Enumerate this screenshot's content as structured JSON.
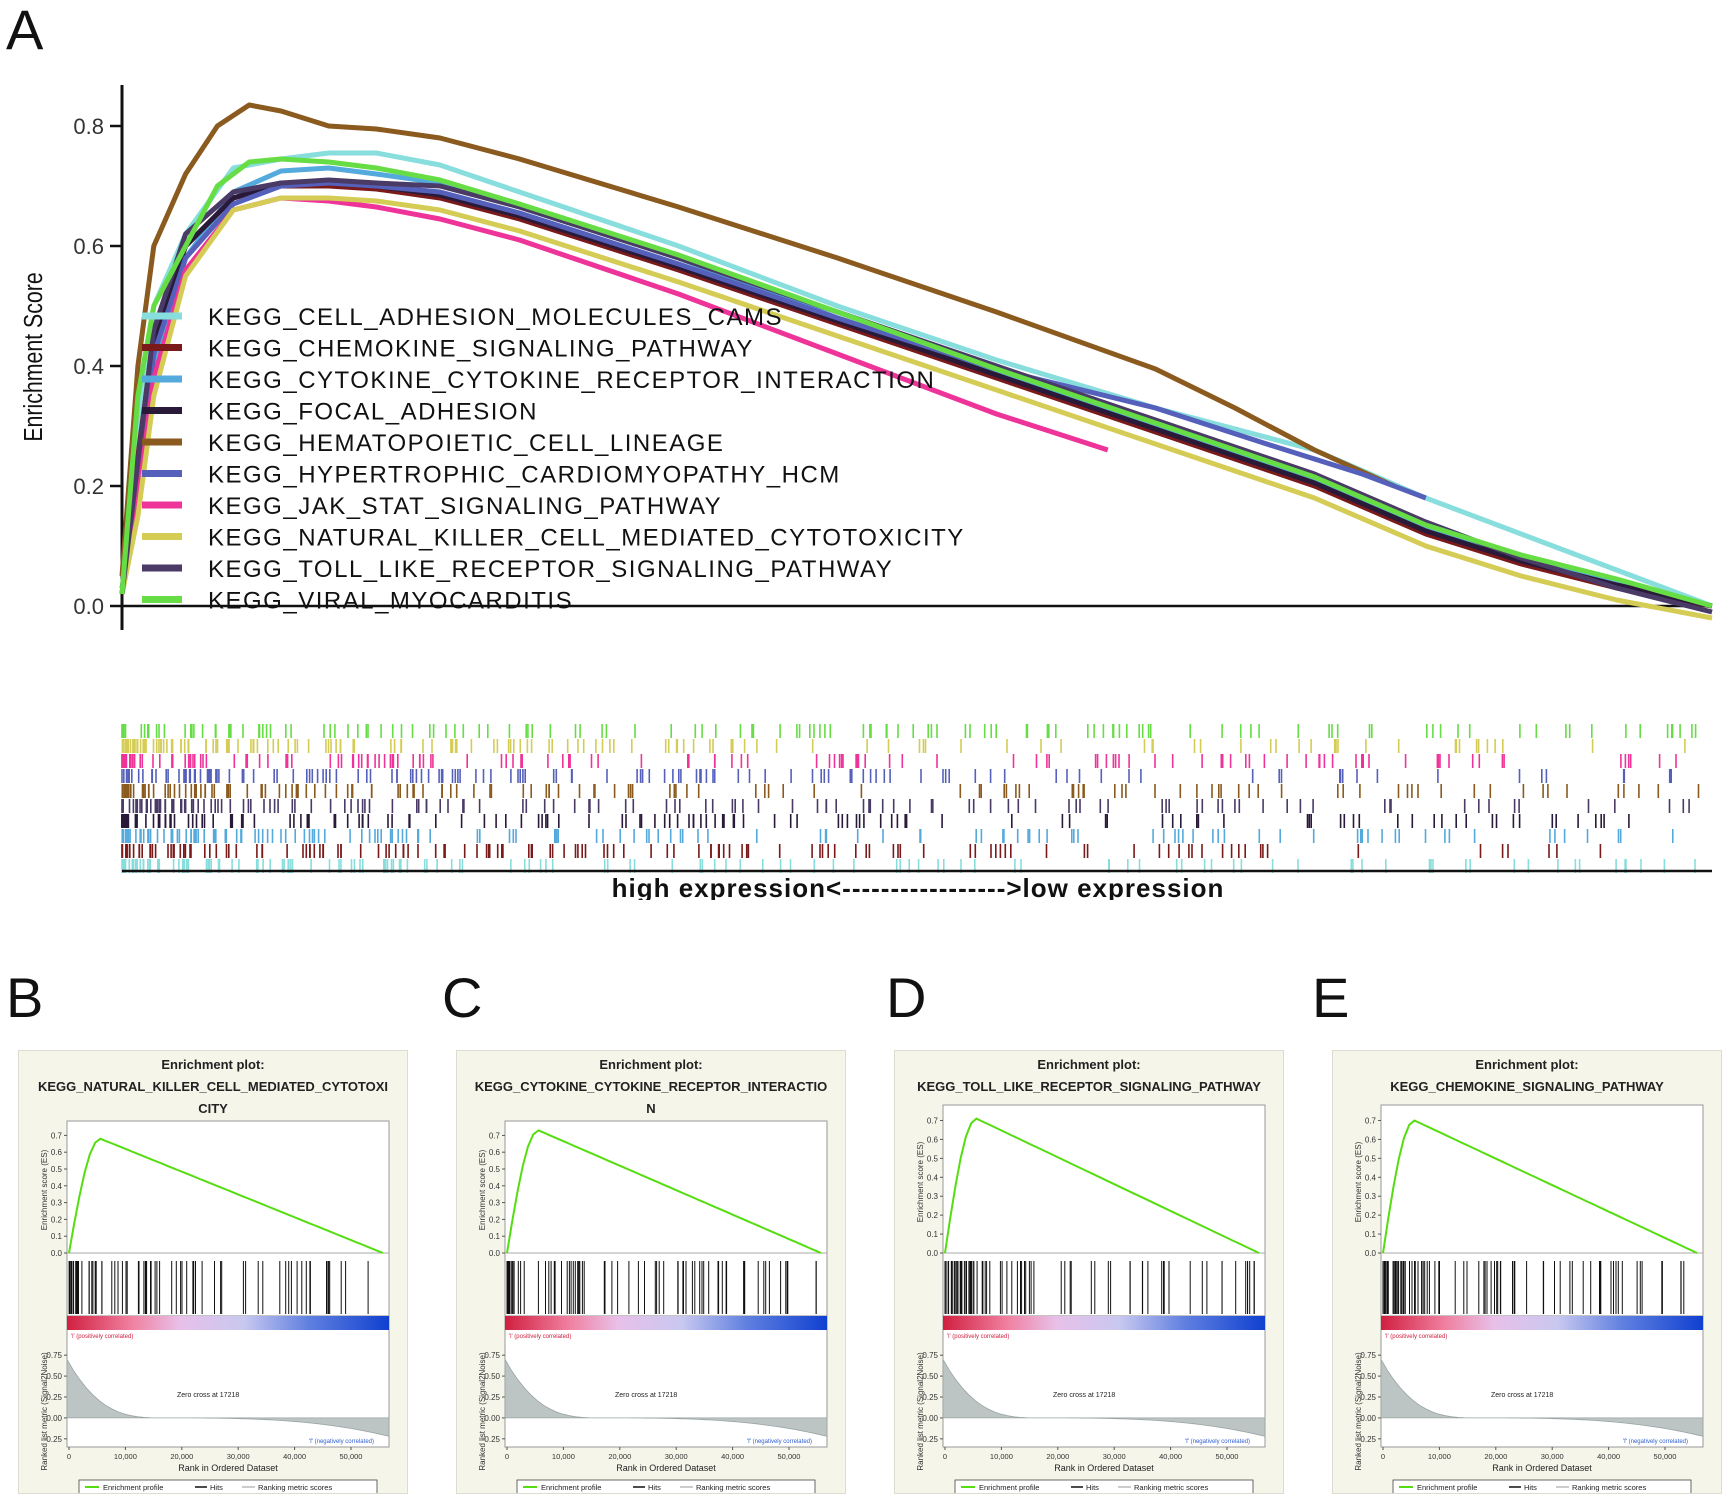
{
  "panels": {
    "a_label": "A",
    "b_label": "B",
    "c_label": "C",
    "d_label": "D",
    "e_label": "E"
  },
  "main_chart": {
    "type": "line",
    "ylabel": "Enrichment Score",
    "xlabel": "high expression<----------------->low expression",
    "ylim": [
      -0.04,
      0.86
    ],
    "yticks": [
      0.0,
      0.2,
      0.4,
      0.6,
      0.8
    ],
    "ytick_labels": [
      "0.0",
      "0.2",
      "0.4",
      "0.6",
      "0.8"
    ],
    "xlim": [
      0,
      1
    ],
    "series": [
      {
        "name": "KEGG_CELL_ADHESION_MOLECULES_CAMS",
        "color": "#88dddd",
        "x": [
          0,
          0.01,
          0.02,
          0.04,
          0.07,
          0.1,
          0.13,
          0.16,
          0.2,
          0.25,
          0.35,
          0.45,
          0.55,
          0.65,
          0.75,
          0.82,
          0.88,
          0.94,
          1.0
        ],
        "y": [
          0.02,
          0.3,
          0.5,
          0.62,
          0.73,
          0.745,
          0.755,
          0.755,
          0.735,
          0.69,
          0.6,
          0.5,
          0.41,
          0.33,
          0.26,
          0.18,
          0.12,
          0.06,
          0.0
        ]
      },
      {
        "name": "KEGG_CHEMOKINE_SIGNALING_PATHWAY",
        "color": "#7a1a1a",
        "x": [
          0,
          0.01,
          0.02,
          0.04,
          0.07,
          0.1,
          0.13,
          0.16,
          0.2,
          0.25,
          0.35,
          0.45,
          0.55,
          0.65,
          0.75,
          0.82,
          0.88,
          0.94,
          1.0
        ],
        "y": [
          0.02,
          0.25,
          0.45,
          0.6,
          0.68,
          0.7,
          0.7,
          0.695,
          0.68,
          0.645,
          0.56,
          0.47,
          0.38,
          0.29,
          0.2,
          0.12,
          0.07,
          0.03,
          0.0
        ]
      },
      {
        "name": "KEGG_CYTOKINE_CYTOKINE_RECEPTOR_INTERACTION",
        "color": "#55aadd",
        "x": [
          0,
          0.01,
          0.02,
          0.04,
          0.07,
          0.1,
          0.13,
          0.16,
          0.2,
          0.25,
          0.35,
          0.45,
          0.55,
          0.65,
          0.75,
          0.82,
          0.88,
          0.94,
          1.0
        ],
        "y": [
          0.02,
          0.2,
          0.4,
          0.58,
          0.69,
          0.725,
          0.73,
          0.72,
          0.705,
          0.665,
          0.58,
          0.48,
          0.39,
          0.3,
          0.21,
          0.13,
          0.08,
          0.04,
          0.0
        ]
      },
      {
        "name": "KEGG_FOCAL_ADHESION",
        "color": "#2a1a3a",
        "x": [
          0,
          0.01,
          0.02,
          0.04,
          0.07,
          0.1,
          0.13,
          0.16,
          0.2,
          0.25,
          0.35,
          0.45,
          0.55,
          0.65,
          0.75,
          0.82,
          0.88,
          0.94,
          1.0
        ],
        "y": [
          0.02,
          0.22,
          0.44,
          0.6,
          0.68,
          0.705,
          0.705,
          0.7,
          0.685,
          0.65,
          0.565,
          0.475,
          0.385,
          0.295,
          0.205,
          0.125,
          0.075,
          0.035,
          0.0
        ]
      },
      {
        "name": "KEGG_HEMATOPOIETIC_CELL_LINEAGE",
        "color": "#8b5a1e",
        "x": [
          0,
          0.01,
          0.02,
          0.04,
          0.06,
          0.08,
          0.1,
          0.13,
          0.16,
          0.2,
          0.25,
          0.35,
          0.45,
          0.55,
          0.65,
          0.7,
          0.75,
          0.8
        ],
        "y": [
          0.05,
          0.4,
          0.6,
          0.72,
          0.8,
          0.835,
          0.825,
          0.8,
          0.795,
          0.78,
          0.745,
          0.665,
          0.58,
          0.49,
          0.395,
          0.33,
          0.26,
          0.2
        ]
      },
      {
        "name": "KEGG_HYPERTROPHIC_CARDIOMYOPATHY_HCM",
        "color": "#5560bb",
        "x": [
          0,
          0.01,
          0.02,
          0.04,
          0.07,
          0.1,
          0.13,
          0.16,
          0.2,
          0.25,
          0.35,
          0.45,
          0.55,
          0.65,
          0.72,
          0.78,
          0.82
        ],
        "y": [
          0.03,
          0.2,
          0.42,
          0.58,
          0.67,
          0.7,
          0.705,
          0.7,
          0.69,
          0.655,
          0.57,
          0.48,
          0.395,
          0.33,
          0.27,
          0.22,
          0.18
        ]
      },
      {
        "name": "KEGG_JAK_STAT_SIGNALING_PATHWAY",
        "color": "#ee3399",
        "x": [
          0,
          0.01,
          0.02,
          0.04,
          0.07,
          0.1,
          0.13,
          0.16,
          0.2,
          0.25,
          0.35,
          0.45,
          0.55,
          0.62
        ],
        "y": [
          0.02,
          0.18,
          0.38,
          0.56,
          0.66,
          0.68,
          0.675,
          0.665,
          0.645,
          0.61,
          0.52,
          0.42,
          0.32,
          0.26
        ]
      },
      {
        "name": "KEGG_NATURAL_KILLER_CELL_MEDIATED_CYTOTOXICITY",
        "color": "#d4cc55",
        "x": [
          0,
          0.01,
          0.02,
          0.04,
          0.07,
          0.1,
          0.13,
          0.16,
          0.2,
          0.25,
          0.35,
          0.45,
          0.55,
          0.65,
          0.75,
          0.82,
          0.88,
          0.94,
          1.0
        ],
        "y": [
          0.02,
          0.15,
          0.35,
          0.55,
          0.66,
          0.68,
          0.68,
          0.675,
          0.66,
          0.625,
          0.54,
          0.45,
          0.36,
          0.27,
          0.18,
          0.1,
          0.05,
          0.01,
          -0.02
        ]
      },
      {
        "name": "KEGG_TOLL_LIKE_RECEPTOR_SIGNALING_PATHWAY",
        "color": "#4a3a66",
        "x": [
          0,
          0.01,
          0.02,
          0.04,
          0.07,
          0.1,
          0.13,
          0.16,
          0.2,
          0.25,
          0.35,
          0.45,
          0.55,
          0.65,
          0.75,
          0.82,
          0.88,
          0.94,
          1.0
        ],
        "y": [
          0.02,
          0.24,
          0.46,
          0.62,
          0.69,
          0.705,
          0.71,
          0.705,
          0.7,
          0.665,
          0.58,
          0.49,
          0.4,
          0.31,
          0.22,
          0.14,
          0.08,
          0.03,
          -0.01
        ]
      },
      {
        "name": "KEGG_VIRAL_MYOCARDITIS",
        "color": "#66dd44",
        "x": [
          0,
          0.01,
          0.02,
          0.04,
          0.06,
          0.08,
          0.1,
          0.13,
          0.16,
          0.2,
          0.25,
          0.35,
          0.45,
          0.55,
          0.65,
          0.75,
          0.82,
          0.88,
          0.94,
          1.0
        ],
        "y": [
          0.02,
          0.35,
          0.5,
          0.6,
          0.7,
          0.74,
          0.745,
          0.74,
          0.73,
          0.71,
          0.67,
          0.585,
          0.49,
          0.395,
          0.305,
          0.215,
          0.135,
          0.085,
          0.045,
          0.0
        ]
      }
    ]
  },
  "sub_plots": [
    {
      "title_lines": [
        "Enrichment plot:",
        "KEGG_NATURAL_KILLER_CELL_MEDIATED_CYTOTOXI",
        "CITY"
      ],
      "es_peak": 0.68,
      "es_end": 0.0,
      "yticks": [
        "0.7",
        "0.6",
        "0.5",
        "0.4",
        "0.3",
        "0.2",
        "0.1",
        "0.0"
      ]
    },
    {
      "title_lines": [
        "Enrichment plot:",
        "KEGG_CYTOKINE_CYTOKINE_RECEPTOR_INTERACTIO",
        "N"
      ],
      "es_peak": 0.73,
      "es_end": 0.0,
      "yticks": [
        "0.7",
        "0.6",
        "0.5",
        "0.4",
        "0.3",
        "0.2",
        "0.1",
        "0.0"
      ]
    },
    {
      "title_lines": [
        "Enrichment plot:",
        "KEGG_TOLL_LIKE_RECEPTOR_SIGNALING_PATHWAY"
      ],
      "es_peak": 0.71,
      "es_end": 0.0,
      "yticks": [
        "0.7",
        "0.6",
        "0.5",
        "0.4",
        "0.3",
        "0.2",
        "0.1",
        "0.0"
      ]
    },
    {
      "title_lines": [
        "Enrichment plot:",
        "KEGG_CHEMOKINE_SIGNALING_PATHWAY"
      ],
      "es_peak": 0.7,
      "es_end": 0.0,
      "yticks": [
        "0.7",
        "0.6",
        "0.5",
        "0.4",
        "0.3",
        "0.2",
        "0.1",
        "0.0"
      ]
    }
  ],
  "sub_common": {
    "es_ylabel": "Enrichment score (ES)",
    "metric_ylabel": "Ranked list metric (Signal2Noise)",
    "metric_yticks": [
      "0.75",
      "0.50",
      "0.25",
      "0.00",
      "-0.25"
    ],
    "xticks": [
      "0",
      "10,000",
      "20,000",
      "30,000",
      "40,000",
      "50,000"
    ],
    "xlabel": "Rank in Ordered Dataset",
    "pos_label": "'l' (positively correlated)",
    "neg_label": "'f' (negatively correlated)",
    "zero_cross": "Zero cross at 17218",
    "legend_profile": "Enrichment profile",
    "legend_hits": "Hits",
    "legend_metric": "Ranking metric scores"
  }
}
